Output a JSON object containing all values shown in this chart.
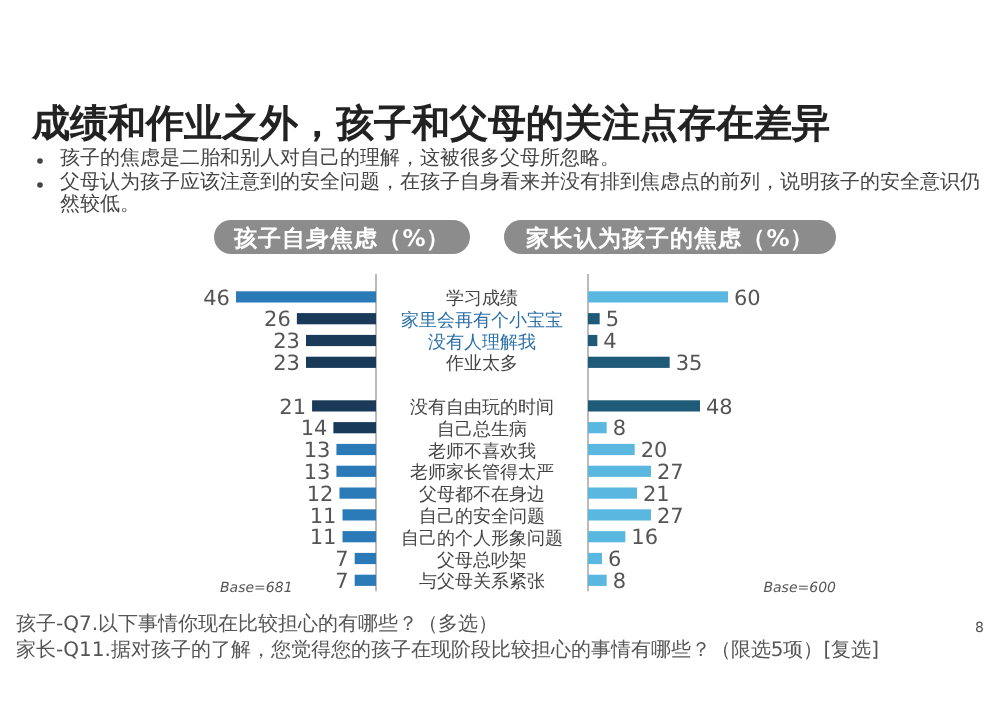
{
  "chart_data": [
    {
      "type": "bar",
      "orientation": "horizontal",
      "title": "孩子自身焦虑（%）",
      "categories": [
        "学习成绩",
        "家里会再有个小宝宝",
        "没有人理解我",
        "作业太多",
        null,
        "没有自由玩的时间",
        "自己总生病",
        "老师不喜欢我",
        "老师家长管得太严",
        "父母都不在身边",
        "自己的安全问题",
        "自己的个人形象问题",
        "父母总吵架",
        "与父母关系紧张"
      ],
      "values": [
        46,
        26,
        23,
        23,
        null,
        21,
        14,
        13,
        13,
        12,
        11,
        11,
        7,
        7
      ],
      "colors": [
        "#2a7ab8",
        "#1a3a5a",
        "#1a3a5a",
        "#1a3a5a",
        null,
        "#1a3a5a",
        "#1a3a5a",
        "#2a7ab8",
        "#2a7ab8",
        "#2a7ab8",
        "#2a7ab8",
        "#2a7ab8",
        "#2a7ab8",
        "#2a7ab8"
      ],
      "data_labels": true,
      "annotations": [
        "成绩和作业之外，孩子和父母的关注点存在差异",
        "孩子的焦虑是二胎和别人对自己的理解，这被很多父母所忽略。",
        "父母认为孩子应该注意到的安全问题，在孩子自身看来并没有排到焦虑点的前列，说明孩子的安全意识仍然较低。",
        "Base=681",
        "孩子-Q7.以下事情你现在比较担心的有哪些？（多选）",
        "家长-Q11.据对孩子的了解，您觉得您的孩子在现阶段比较担心的事情有哪些？（限选5项）[复选]",
        "8"
      ]
    },
    {
      "type": "bar",
      "orientation": "horizontal",
      "title": "家长认为孩子的焦虑（%）",
      "categories": [
        null,
        null,
        null,
        null,
        null,
        null,
        null,
        null,
        null,
        null,
        null,
        null,
        null,
        null
      ],
      "values": [
        60,
        5,
        4,
        35,
        null,
        48,
        8,
        20,
        27,
        21,
        27,
        16,
        6,
        8
      ],
      "colors": [
        "#5ab8e0",
        "#1f5a78",
        "#1f5a78",
        "#1f5a78",
        null,
        "#1f5a78",
        "#5ab8e0",
        "#5ab8e0",
        "#5ab8e0",
        "#5ab8e0",
        "#5ab8e0",
        "#5ab8e0",
        "#5ab8e0",
        "#5ab8e0"
      ],
      "data_labels": true,
      "annotations": [
        "Base=600"
      ]
    }
  ]
}
